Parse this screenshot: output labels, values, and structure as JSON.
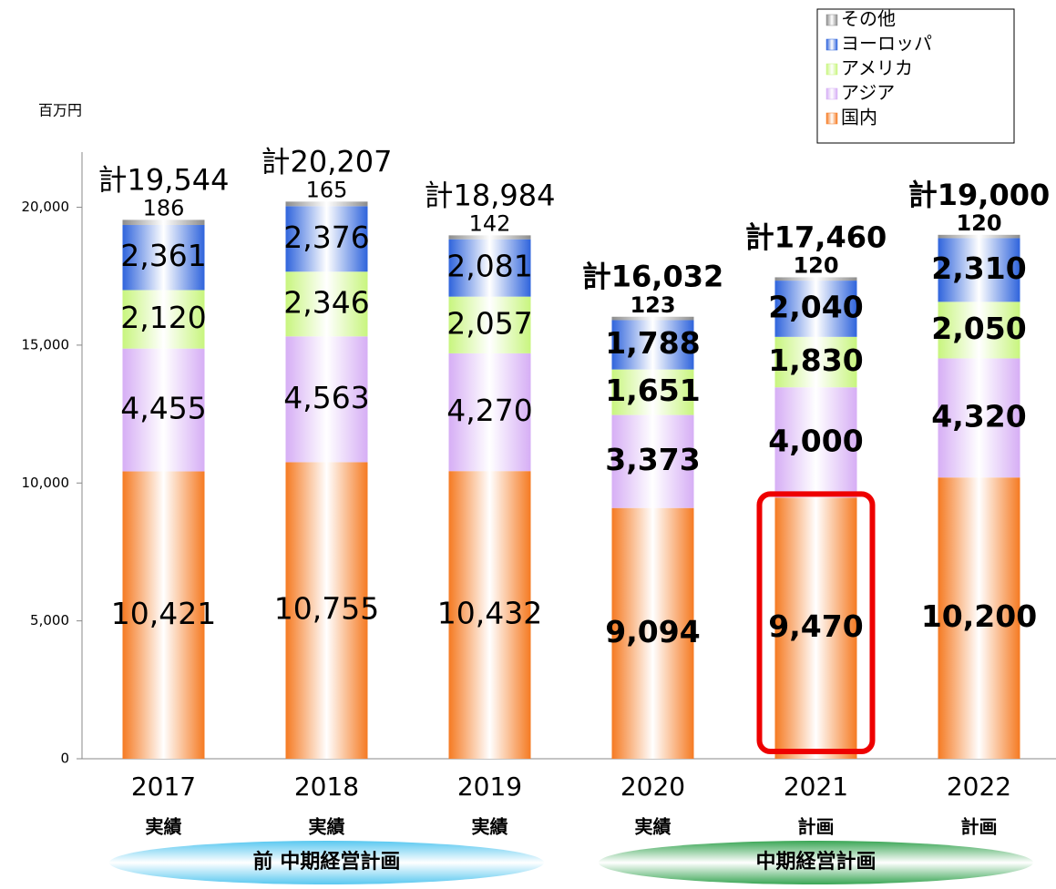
{
  "chart_data": {
    "type": "stacked_bar",
    "unit_label": "百万円",
    "categories": [
      "2017",
      "2018",
      "2019",
      "2020",
      "2021",
      "2022"
    ],
    "sub_labels": [
      "実績",
      "実績",
      "実績",
      "実績",
      "計画",
      "計画"
    ],
    "groups": [
      {
        "label": "前 中期経営計画",
        "color": "#59c8f0"
      },
      {
        "label": "中期経営計画",
        "color": "#3aa655"
      }
    ],
    "series": [
      {
        "name": "国内",
        "color": "#f57a22",
        "values": [
          10421,
          10755,
          10432,
          9094,
          9470,
          10200
        ],
        "value_labels": [
          "10,421",
          "10,755",
          "10,432",
          "9,094",
          "9,470",
          "10,200"
        ]
      },
      {
        "name": "アジア",
        "color": "#d6aef5",
        "values": [
          4455,
          4563,
          4270,
          3373,
          4000,
          4320
        ],
        "value_labels": [
          "4,455",
          "4,563",
          "4,270",
          "3,373",
          "4,000",
          "4,320"
        ]
      },
      {
        "name": "アメリカ",
        "color": "#c8f57e",
        "values": [
          2120,
          2346,
          2057,
          1651,
          1830,
          2050
        ],
        "value_labels": [
          "2,120",
          "2,346",
          "2,057",
          "1,651",
          "1,830",
          "2,050"
        ]
      },
      {
        "name": "ヨーロッパ",
        "color": "#2f64dc",
        "values": [
          2361,
          2376,
          2081,
          1788,
          2040,
          2310
        ],
        "value_labels": [
          "2,361",
          "2,376",
          "2,081",
          "1,788",
          "2,040",
          "2,310"
        ]
      },
      {
        "name": "その他",
        "color": "#8c8c8c",
        "values": [
          186,
          165,
          142,
          123,
          120,
          120
        ]
      }
    ],
    "totals": [
      19544,
      20207,
      18984,
      16032,
      17460,
      19000
    ],
    "total_labels": [
      "計19,544",
      "計20,207",
      "計18,984",
      "計16,032",
      "計17,460",
      "計19,000"
    ],
    "ylim": [
      0,
      22000
    ],
    "yticks": [
      0,
      {
        "value": 5000,
        "label": "5,000"
      },
      {
        "value": 10000,
        "label": "10,000"
      },
      {
        "value": 15000,
        "label": "15,000"
      },
      {
        "value": 20000,
        "label": "20,000"
      }
    ]
  }
}
